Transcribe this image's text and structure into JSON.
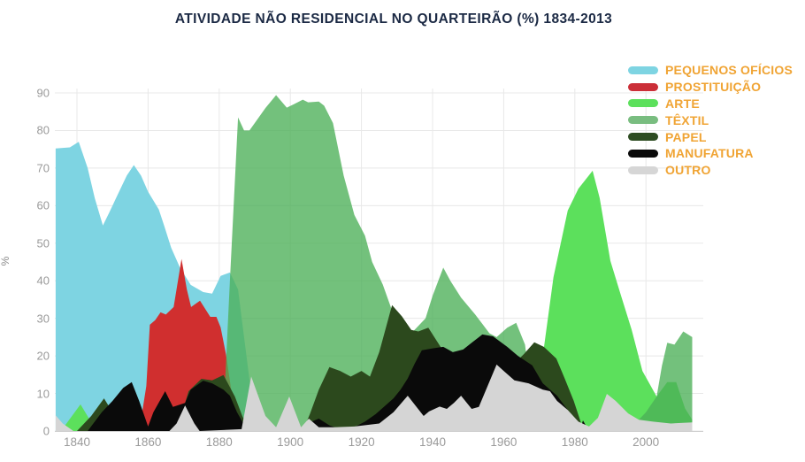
{
  "title": "ATIVIDADE NÃO RESIDENCIAL NO QUARTEIRÃO (%) 1834-2013",
  "colors": {
    "title_text": "#1b2944",
    "legend_text": "#f0a434",
    "axis_text": "#9a9a9a",
    "gridline": "#e8e8e8",
    "axis_line": "#cfcfcf",
    "background": "#ffffff"
  },
  "legend": {
    "items": [
      {
        "key": "pequenos_oficios",
        "label": "PEQUENOS OFÍCIOS",
        "color": "#7ed4e2"
      },
      {
        "key": "prostituicao",
        "label": "PROSTITUIÇÃO",
        "color": "#cb2f38"
      },
      {
        "key": "arte",
        "label": "ARTE",
        "color": "#5ce05c"
      },
      {
        "key": "textil",
        "label": "TÊXTIL",
        "color": "#79bd80"
      },
      {
        "key": "papel",
        "label": "PAPEL",
        "color": "#2e4d22"
      },
      {
        "key": "manufatura",
        "label": "MANUFATURA",
        "color": "#0a0a0a"
      },
      {
        "key": "outro",
        "label": "OUTRO",
        "color": "#d6d6d6"
      }
    ]
  },
  "chart_data": {
    "type": "area",
    "title": "ATIVIDADE NÃO RESIDENCIAL NO QUARTEIRÃO (%) 1834-2013",
    "xlabel": "",
    "ylabel": "%",
    "x_range": [
      1834,
      2013
    ],
    "ylim": [
      0,
      90
    ],
    "grid": true,
    "legend_position": "top-right",
    "x_ticks": [
      1840,
      1860,
      1880,
      1900,
      1920,
      1940,
      1960,
      1980,
      2000
    ],
    "y_ticks": [
      0,
      10,
      20,
      30,
      40,
      50,
      60,
      70,
      80,
      90
    ],
    "series": [
      {
        "name": "PEQUENOS OFÍCIOS",
        "key": "pequenos_oficios",
        "color": "#7ed4e2",
        "fill_opacity": 1,
        "points": [
          [
            1834,
            75.2
          ],
          [
            1838,
            75.5
          ],
          [
            1840.5,
            77
          ],
          [
            1843,
            70
          ],
          [
            1845,
            62
          ],
          [
            1847.3,
            54.7
          ],
          [
            1849,
            58
          ],
          [
            1851,
            62
          ],
          [
            1854,
            68
          ],
          [
            1856,
            70.8
          ],
          [
            1858,
            68
          ],
          [
            1860,
            63.7
          ],
          [
            1863,
            59
          ],
          [
            1864.5,
            54.7
          ],
          [
            1866.5,
            48.8
          ],
          [
            1869,
            43.4
          ],
          [
            1872,
            38.9
          ],
          [
            1875.5,
            37
          ],
          [
            1878,
            36.6
          ],
          [
            1880.4,
            41.3
          ],
          [
            1883,
            42.2
          ],
          [
            1885.3,
            37.7
          ],
          [
            1887,
            25
          ],
          [
            1889,
            10
          ],
          [
            1891,
            4
          ],
          [
            1895,
            1
          ],
          [
            1900,
            0
          ]
        ]
      },
      {
        "name": "PROSTITUIÇÃO",
        "key": "prostituicao",
        "color": "#d02f2f",
        "fill_opacity": 1,
        "points": [
          [
            1856.5,
            0
          ],
          [
            1858,
            3
          ],
          [
            1859.5,
            12
          ],
          [
            1860.5,
            28.3
          ],
          [
            1862,
            29.5
          ],
          [
            1863.5,
            31.6
          ],
          [
            1865,
            31
          ],
          [
            1867.2,
            33
          ],
          [
            1869.4,
            45.8
          ],
          [
            1870.9,
            37.7
          ],
          [
            1872.1,
            33
          ],
          [
            1874.6,
            34.7
          ],
          [
            1877.5,
            30.4
          ],
          [
            1879.2,
            30.4
          ],
          [
            1880.4,
            27.6
          ],
          [
            1881.9,
            20.5
          ],
          [
            1883.1,
            12.7
          ],
          [
            1885,
            0
          ]
        ]
      },
      {
        "name": "ARTE",
        "key": "arte",
        "color": "#5ce05c",
        "fill_opacity": 1,
        "points": [
          [
            1835.5,
            0
          ],
          [
            1841,
            7.1
          ],
          [
            1845.5,
            0
          ],
          [
            1969,
            0
          ],
          [
            1971,
            20
          ],
          [
            1974,
            41
          ],
          [
            1978,
            58.7
          ],
          [
            1981,
            64.5
          ],
          [
            1985,
            69.3
          ],
          [
            1987,
            62
          ],
          [
            1990,
            45.3
          ],
          [
            1993,
            36
          ],
          [
            1996,
            26.9
          ],
          [
            1999,
            16
          ],
          [
            2003,
            9.2
          ],
          [
            2006,
            13
          ],
          [
            2008.5,
            13
          ],
          [
            2011,
            6
          ],
          [
            2013,
            3
          ]
        ]
      },
      {
        "name": "TÊXTIL",
        "key": "textil",
        "color": "#4caf57",
        "fill_opacity": 0.78,
        "points": [
          [
            1881,
            0
          ],
          [
            1883,
            40
          ],
          [
            1885.3,
            83.5
          ],
          [
            1887,
            80
          ],
          [
            1888.5,
            80
          ],
          [
            1890,
            82
          ],
          [
            1893,
            86
          ],
          [
            1896,
            89.4
          ],
          [
            1899,
            86.1
          ],
          [
            1901,
            87
          ],
          [
            1903.5,
            88.2
          ],
          [
            1905,
            87.5
          ],
          [
            1908,
            87.7
          ],
          [
            1909.5,
            86.6
          ],
          [
            1912,
            82
          ],
          [
            1915,
            68
          ],
          [
            1918,
            57.5
          ],
          [
            1921,
            52
          ],
          [
            1923,
            45
          ],
          [
            1926,
            39
          ],
          [
            1929,
            31
          ],
          [
            1932,
            24
          ],
          [
            1934,
            26
          ],
          [
            1938,
            30
          ],
          [
            1940,
            36
          ],
          [
            1943,
            43.5
          ],
          [
            1945,
            40
          ],
          [
            1948,
            35.5
          ],
          [
            1952,
            31
          ],
          [
            1954,
            28.5
          ],
          [
            1956,
            26
          ],
          [
            1958,
            25
          ],
          [
            1961,
            27.5
          ],
          [
            1963.5,
            28.8
          ],
          [
            1966,
            23
          ],
          [
            1967.5,
            12
          ],
          [
            1969.5,
            3
          ],
          [
            1971,
            0
          ],
          [
            1995,
            0
          ],
          [
            1997,
            2
          ],
          [
            2000,
            5
          ],
          [
            2003,
            9.2
          ],
          [
            2004.5,
            17.4
          ],
          [
            2006,
            23.5
          ],
          [
            2008,
            23
          ],
          [
            2010.5,
            26.5
          ],
          [
            2013,
            25
          ]
        ]
      },
      {
        "name": "PAPEL",
        "key": "papel",
        "color": "#2c491d",
        "fill_opacity": 1,
        "points": [
          [
            1840,
            0
          ],
          [
            1844,
            4
          ],
          [
            1847.6,
            8.7
          ],
          [
            1850,
            5
          ],
          [
            1853,
            2
          ],
          [
            1856,
            1
          ],
          [
            1859,
            0
          ],
          [
            1868,
            0
          ],
          [
            1871.4,
            10.6
          ],
          [
            1875,
            13.9
          ],
          [
            1878,
            13.5
          ],
          [
            1881.2,
            14.9
          ],
          [
            1884.4,
            9.2
          ],
          [
            1886.5,
            4
          ],
          [
            1888.5,
            0
          ],
          [
            1903.5,
            0
          ],
          [
            1905.5,
            4.5
          ],
          [
            1908,
            11
          ],
          [
            1911,
            17
          ],
          [
            1914,
            16
          ],
          [
            1917,
            14.5
          ],
          [
            1920,
            16
          ],
          [
            1922.4,
            14.5
          ],
          [
            1925,
            21
          ],
          [
            1928.6,
            33.5
          ],
          [
            1931.4,
            30.5
          ],
          [
            1934,
            26.9
          ],
          [
            1936,
            26.5
          ],
          [
            1938.8,
            27.5
          ],
          [
            1942.4,
            22.2
          ],
          [
            1946,
            19
          ],
          [
            1950,
            16.5
          ],
          [
            1954,
            15.5
          ],
          [
            1958,
            15
          ],
          [
            1962,
            17
          ],
          [
            1965.7,
            20.5
          ],
          [
            1968.6,
            23.6
          ],
          [
            1971.3,
            22.4
          ],
          [
            1974.8,
            19.3
          ],
          [
            1977.2,
            13.9
          ],
          [
            1979.7,
            8
          ],
          [
            1982.5,
            0
          ]
        ]
      },
      {
        "name": "MANUFATURA",
        "key": "manufatura",
        "color": "#0a0a0a",
        "fill_opacity": 1,
        "points": [
          [
            1843,
            0
          ],
          [
            1847,
            5
          ],
          [
            1850,
            8
          ],
          [
            1853,
            11.5
          ],
          [
            1855.4,
            13
          ],
          [
            1857.5,
            8
          ],
          [
            1860,
            1.2
          ],
          [
            1861.5,
            5
          ],
          [
            1864.8,
            10.6
          ],
          [
            1867,
            6.4
          ],
          [
            1870.4,
            7.5
          ],
          [
            1872,
            11
          ],
          [
            1875.5,
            13.4
          ],
          [
            1878,
            12.7
          ],
          [
            1881.2,
            11
          ],
          [
            1883,
            9.4
          ],
          [
            1885,
            5
          ],
          [
            1888,
            0
          ],
          [
            1903,
            0
          ],
          [
            1906,
            2.5
          ],
          [
            1908,
            3.3
          ],
          [
            1911,
            1.5
          ],
          [
            1914,
            0.5
          ],
          [
            1917.5,
            0.8
          ],
          [
            1921,
            2.5
          ],
          [
            1924,
            4.5
          ],
          [
            1929,
            8.7
          ],
          [
            1931,
            11
          ],
          [
            1933,
            14
          ],
          [
            1935,
            18
          ],
          [
            1937,
            21.5
          ],
          [
            1940,
            22
          ],
          [
            1943,
            22.4
          ],
          [
            1945.7,
            21
          ],
          [
            1948.6,
            21.7
          ],
          [
            1951,
            23.5
          ],
          [
            1954,
            25.7
          ],
          [
            1957,
            25.2
          ],
          [
            1959,
            23.8
          ],
          [
            1961,
            22.4
          ],
          [
            1964,
            20
          ],
          [
            1968,
            17.5
          ],
          [
            1971,
            12.7
          ],
          [
            1975,
            9.4
          ],
          [
            1978,
            5.6
          ],
          [
            1980.5,
            0.5
          ],
          [
            1981.3,
            0
          ],
          [
            1982.3,
            2.8
          ],
          [
            1984,
            0
          ]
        ]
      },
      {
        "name": "OUTRO",
        "key": "outro",
        "color": "#d5d5d5",
        "fill_opacity": 1,
        "points": [
          [
            1834,
            4.2
          ],
          [
            1836,
            2
          ],
          [
            1839,
            0
          ],
          [
            1866,
            0
          ],
          [
            1868,
            2
          ],
          [
            1870.4,
            6.8
          ],
          [
            1873,
            2
          ],
          [
            1874.5,
            0
          ],
          [
            1886.3,
            0.5
          ],
          [
            1889,
            14.5
          ],
          [
            1893,
            4
          ],
          [
            1896,
            1
          ],
          [
            1899.7,
            9.2
          ],
          [
            1903,
            1
          ],
          [
            1905.2,
            3.3
          ],
          [
            1908,
            1
          ],
          [
            1912,
            1
          ],
          [
            1918,
            1.2
          ],
          [
            1925,
            2
          ],
          [
            1929,
            5
          ],
          [
            1933,
            9.4
          ],
          [
            1937.5,
            4
          ],
          [
            1939,
            5.2
          ],
          [
            1942,
            6.5
          ],
          [
            1944,
            5.9
          ],
          [
            1946,
            7.5
          ],
          [
            1948,
            9.4
          ],
          [
            1951,
            5.9
          ],
          [
            1953,
            6.4
          ],
          [
            1958,
            17.7
          ],
          [
            1960,
            16
          ],
          [
            1963,
            13.5
          ],
          [
            1967,
            12.7
          ],
          [
            1971,
            11
          ],
          [
            1973,
            10.6
          ],
          [
            1975,
            8
          ],
          [
            1978,
            5.6
          ],
          [
            1981,
            2.5
          ],
          [
            1984,
            1.2
          ],
          [
            1986.5,
            3.5
          ],
          [
            1989,
            9.9
          ],
          [
            1991.5,
            8
          ],
          [
            1995,
            4.7
          ],
          [
            1998,
            3
          ],
          [
            2002,
            2.5
          ],
          [
            2007,
            2
          ],
          [
            2013,
            2.3
          ]
        ]
      }
    ]
  }
}
